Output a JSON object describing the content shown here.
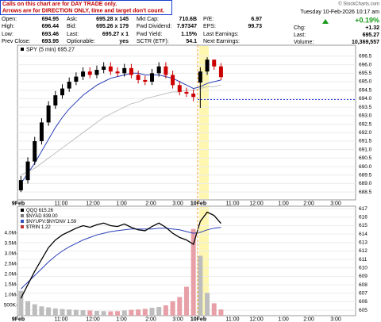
{
  "header": {
    "note": [
      "Calls on this chart are for DAY TRADE only.",
      "Arrows are for DIRECTION ONLY, time and target don't count."
    ],
    "credit": "© StockCharts.com",
    "date": "Tuesday 10-Feb-2026 10:17 am",
    "rows": [
      [
        [
          "Open:",
          "694.95"
        ],
        [
          "Ask:",
          "695.28 x 145"
        ],
        [
          "Mkt Cap:",
          "710.6B"
        ],
        [
          "P/E:",
          "6.97"
        ]
      ],
      [
        [
          "High:",
          "696.44"
        ],
        [
          "Bid:",
          "695.26 x 179"
        ],
        [
          "Fwd Dividend:",
          "7.97347"
        ],
        [
          "EPS:",
          "99.73"
        ]
      ],
      [
        [
          "Low:",
          "693.46"
        ],
        [
          "Last:",
          "695.27 x 1"
        ],
        [
          "Fwd Yield:",
          "1.15%"
        ],
        [
          "Last Earnings:"
        ]
      ],
      [
        [
          "Prev Close:",
          "693.95"
        ],
        [
          "Optionable:",
          "yes"
        ],
        [
          "SCTR (ETF):",
          "54.1"
        ],
        [
          "Next Earnings:"
        ]
      ]
    ],
    "change_pct": "+0.19%",
    "change_color": "#1a9a1a",
    "right": [
      [
        "Chg:",
        "+1.32"
      ],
      [
        "Last:",
        "695.27"
      ],
      [
        "Volume:",
        "10,369,557"
      ]
    ]
  },
  "chart_data": [
    {
      "type": "candlestick",
      "label": "SPY (5 min) 695.27",
      "open": [
        688.6,
        689.2,
        690.3,
        691.5,
        692.6,
        693.6,
        694.2,
        694.6,
        695.0,
        695.3,
        695.6,
        695.4,
        695.7,
        695.9,
        695.6,
        695.5,
        695.8,
        695.4,
        695.1,
        695.0,
        695.5,
        695.9,
        695.4,
        694.8,
        694.4,
        694.3,
        694.95,
        695.6,
        696.3,
        695.9
      ],
      "high": [
        689.45,
        690.55,
        691.75,
        692.85,
        693.85,
        694.45,
        694.85,
        695.25,
        695.55,
        695.85,
        695.85,
        695.95,
        696.15,
        696.15,
        695.85,
        696.05,
        696.05,
        695.65,
        695.35,
        695.75,
        696.15,
        696.15,
        695.65,
        695.05,
        694.65,
        694.55,
        695.85,
        696.44,
        696.3,
        696.1
      ],
      "low": [
        688.5,
        689.0,
        690.1,
        691.3,
        692.4,
        693.4,
        694.0,
        694.4,
        694.8,
        695.1,
        695.2,
        695.2,
        695.5,
        695.4,
        695.3,
        695.3,
        695.2,
        694.9,
        694.8,
        694.8,
        695.3,
        695.2,
        694.6,
        694.2,
        694.1,
        693.85,
        693.46,
        695.4,
        695.7,
        695.1
      ],
      "close": [
        689.2,
        690.3,
        691.5,
        692.6,
        693.6,
        694.2,
        694.6,
        695.0,
        695.3,
        695.6,
        695.4,
        695.7,
        695.9,
        695.6,
        695.5,
        695.8,
        695.4,
        695.1,
        695.0,
        695.5,
        695.9,
        695.4,
        694.8,
        694.4,
        694.3,
        694.1,
        695.6,
        696.3,
        695.9,
        695.27
      ],
      "up_color": "#000000",
      "down_color": "#cc0000",
      "series": [
        {
          "color": "#2a3fb8",
          "values": [
            689.0,
            689.6,
            690.2,
            690.9,
            691.6,
            692.3,
            692.9,
            693.4,
            693.8,
            694.2,
            694.5,
            694.8,
            695.0,
            695.2,
            695.3,
            695.4,
            695.5,
            695.5,
            695.4,
            695.4,
            695.4,
            695.3,
            695.2,
            695.0,
            694.8,
            694.6,
            694.7,
            694.9,
            695.0,
            695.1
          ]
        },
        {
          "color": "#c0c0c0",
          "values": [
            689.5,
            689.7,
            689.9,
            690.2,
            690.5,
            690.8,
            691.1,
            691.4,
            691.7,
            692.0,
            692.3,
            692.6,
            692.9,
            693.1,
            693.3,
            693.5,
            693.7,
            693.8,
            694.0,
            694.1,
            694.2,
            694.3,
            694.4,
            694.4,
            694.5,
            694.5,
            694.6,
            694.7,
            694.7,
            694.8
          ]
        }
      ],
      "ylim": [
        688.04,
        697.15
      ],
      "yticks": [
        688.5,
        {
          "value": 689,
          "label": "689.0"
        },
        689.5,
        {
          "value": 690,
          "label": "690.0"
        },
        690.5,
        {
          "value": 691,
          "label": "691.0"
        },
        691.5,
        {
          "value": 692,
          "label": "692.0"
        },
        692.5,
        {
          "value": 693,
          "label": "693.0"
        },
        693.5,
        {
          "value": 694,
          "label": "694.0"
        },
        694.5,
        {
          "value": 695,
          "label": "695.0"
        },
        695.5,
        {
          "value": 696,
          "label": "696.0"
        },
        696.5
      ],
      "xtick_labels": [
        "9Feb",
        "11:00",
        "12:00",
        "1:00",
        "2:00",
        "3:00",
        "10Feb",
        "11:00",
        "12:00",
        "1:00",
        "2:00",
        "3:00"
      ],
      "grid": true
    },
    {
      "type": "line",
      "legend": [
        "QQQ 615.26",
        "$NYAD 839.00",
        "$NYUPV:$NYDNV 1.59",
        "$TRIN 1.22"
      ],
      "series": [
        {
          "color": "#000000",
          "values": [
            606.4,
            608.0,
            609.6,
            611.0,
            612.4,
            613.3,
            613.9,
            614.3,
            614.7,
            615.0,
            614.8,
            615.1,
            615.3,
            615.0,
            614.9,
            615.2,
            614.8,
            614.5,
            614.4,
            614.9,
            615.3,
            614.8,
            614.1,
            613.6,
            613.3,
            612.8,
            615.5,
            616.6,
            616.2,
            615.26
          ]
        },
        {
          "color": "#2a3fb8",
          "values": [
            607.5,
            608.3,
            609.1,
            609.9,
            610.7,
            611.4,
            612.0,
            612.5,
            612.9,
            613.3,
            613.6,
            613.9,
            614.1,
            614.3,
            614.4,
            614.5,
            614.6,
            614.6,
            614.6,
            614.6,
            614.7,
            614.7,
            614.6,
            614.5,
            614.3,
            614.1,
            614.2,
            614.5,
            614.7,
            614.8
          ]
        }
      ],
      "ylim": [
        604.35,
        617.3
      ],
      "yticks": [
        605,
        606,
        607,
        608,
        609,
        610,
        611,
        612,
        613,
        614,
        615,
        616,
        617
      ],
      "volume": [
        1200000,
        700000,
        550000,
        450000,
        400000,
        350000,
        320000,
        300000,
        280000,
        260000,
        250000,
        230000,
        220000,
        210000,
        220000,
        250000,
        280000,
        300000,
        330000,
        380000,
        420000,
        500000,
        700000,
        900000,
        1400000,
        4200000,
        2900000,
        1100000,
        600000,
        300000
      ],
      "volume_up_color": "#bdbdbd",
      "volume_down_color": "#e8a0a8",
      "vlim": [
        0,
        5300000
      ],
      "vticks": [
        {
          "value": 500000,
          "label": "500K"
        },
        {
          "value": 1000000,
          "label": "1.0M"
        },
        {
          "value": 1500000,
          "label": "1.5M"
        },
        {
          "value": 2000000,
          "label": "2.0M"
        },
        {
          "value": 2500000,
          "label": "2.5M"
        },
        {
          "value": 3000000,
          "label": "3.0M"
        },
        {
          "value": 3500000,
          "label": "3.5M"
        },
        {
          "value": 4000000,
          "label": "4.0M"
        }
      ],
      "xtick_labels": [
        "9Feb",
        "11:00",
        "12:00",
        "1:00",
        "2:00",
        "3:00",
        "10Feb",
        "11:00",
        "12:00",
        "1:00",
        "2:00",
        "3:00"
      ],
      "grid": true
    }
  ]
}
